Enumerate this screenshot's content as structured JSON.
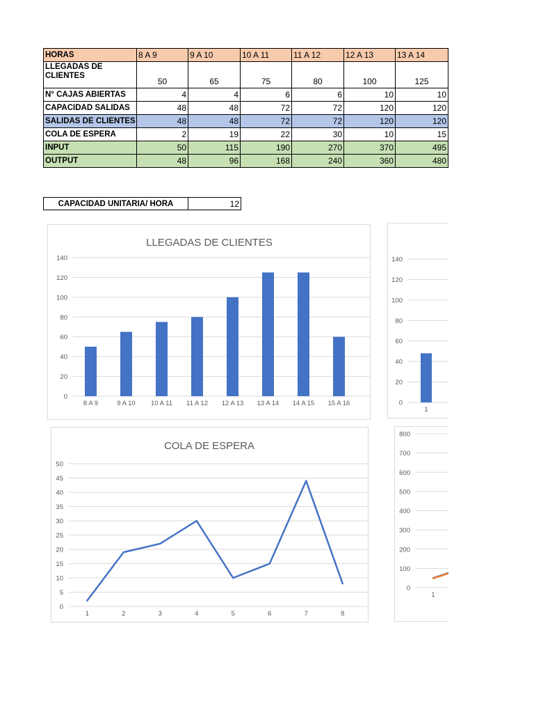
{
  "table": {
    "header": [
      "HORAS",
      "8 A 9",
      "9 A 10",
      "10 A 11",
      "11 A 12",
      "12 A 13",
      "13 A 14"
    ],
    "rows": [
      {
        "label": "LLEGADAS DE CLIENTES",
        "values": [
          "50",
          "65",
          "75",
          "80",
          "100",
          "125"
        ]
      },
      {
        "label": "N° CAJAS ABIERTAS",
        "values": [
          "4",
          "4",
          "6",
          "6",
          "10",
          "10"
        ]
      },
      {
        "label": "CAPACIDAD SALIDAS",
        "values": [
          "48",
          "48",
          "72",
          "72",
          "120",
          "120"
        ]
      },
      {
        "label": "SALIDAS DE CLIENTES",
        "values": [
          "48",
          "48",
          "72",
          "72",
          "120",
          "120"
        ]
      },
      {
        "label": "COLA DE ESPERA",
        "values": [
          "2",
          "19",
          "22",
          "30",
          "10",
          "15"
        ]
      },
      {
        "label": "INPUT",
        "values": [
          "50",
          "115",
          "190",
          "270",
          "370",
          "495"
        ]
      },
      {
        "label": "OUTPUT",
        "values": [
          "48",
          "96",
          "168",
          "240",
          "360",
          "480"
        ]
      }
    ],
    "colors": {
      "header": "#f8cbad",
      "salidas": "#b4c6e7",
      "io": "#c6e0b4"
    }
  },
  "capacity": {
    "label": "CAPACIDAD UNITARIA/ HORA",
    "value": "12"
  },
  "chart_data": [
    {
      "type": "bar",
      "title": "LLEGADAS DE CLIENTES",
      "categories": [
        "8 A 9",
        "9 A 10",
        "10 A 11",
        "11 A 12",
        "12 A 13",
        "13 A 14",
        "14 A 15",
        "15 A 16"
      ],
      "values": [
        50,
        65,
        75,
        80,
        100,
        125,
        125,
        60
      ],
      "ylim": [
        0,
        140
      ],
      "yticks": [
        0,
        20,
        40,
        60,
        80,
        100,
        120,
        140
      ],
      "grid": true,
      "color": "#4472c4"
    },
    {
      "type": "line",
      "title": "COLA DE ESPERA",
      "x": [
        1,
        2,
        3,
        4,
        5,
        6,
        7,
        8
      ],
      "values": [
        2,
        19,
        22,
        30,
        10,
        15,
        44,
        8
      ],
      "ylim": [
        0,
        50
      ],
      "yticks": [
        0,
        5,
        10,
        15,
        20,
        25,
        30,
        35,
        40,
        45,
        50
      ],
      "grid": true,
      "color": "#4472c4"
    },
    {
      "type": "bar",
      "title": "",
      "categories": [
        "1"
      ],
      "values": [
        48
      ],
      "ylim": [
        0,
        140
      ],
      "yticks": [
        0,
        20,
        40,
        60,
        80,
        100,
        120,
        140
      ],
      "grid": true,
      "color": "#4472c4",
      "cropped": true
    },
    {
      "type": "line",
      "title": "",
      "categories": [
        "1"
      ],
      "series": [
        {
          "values": [
            50
          ],
          "color": "#4472c4"
        },
        {
          "values": [
            48
          ],
          "color": "#ed7d31"
        }
      ],
      "ylim": [
        0,
        800
      ],
      "yticks": [
        0,
        100,
        200,
        300,
        400,
        500,
        600,
        700,
        800
      ],
      "grid": true,
      "cropped": true
    }
  ]
}
